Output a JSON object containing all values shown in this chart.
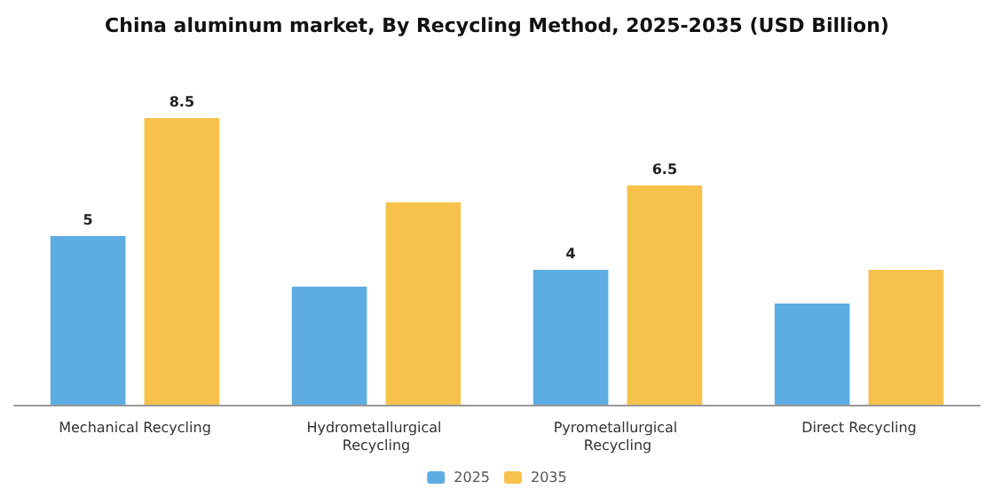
{
  "chart_data": {
    "type": "bar",
    "title": "China aluminum market, By Recycling Method, 2025-2035 (USD Billion)",
    "categories": [
      "Mechanical Recycling",
      "Hydrometallurgical Recycling",
      "Pyrometallurgical Recycling",
      "Direct Recycling"
    ],
    "series": [
      {
        "name": "2025",
        "color": "#5dade2",
        "values": [
          5,
          3.5,
          4,
          3
        ],
        "value_labels": [
          "5",
          null,
          "4",
          null
        ]
      },
      {
        "name": "2035",
        "color": "#f7c24c",
        "values": [
          8.5,
          6,
          6.5,
          4
        ],
        "value_labels": [
          "8.5",
          null,
          "6.5",
          null
        ]
      }
    ],
    "legend": "bottom"
  }
}
